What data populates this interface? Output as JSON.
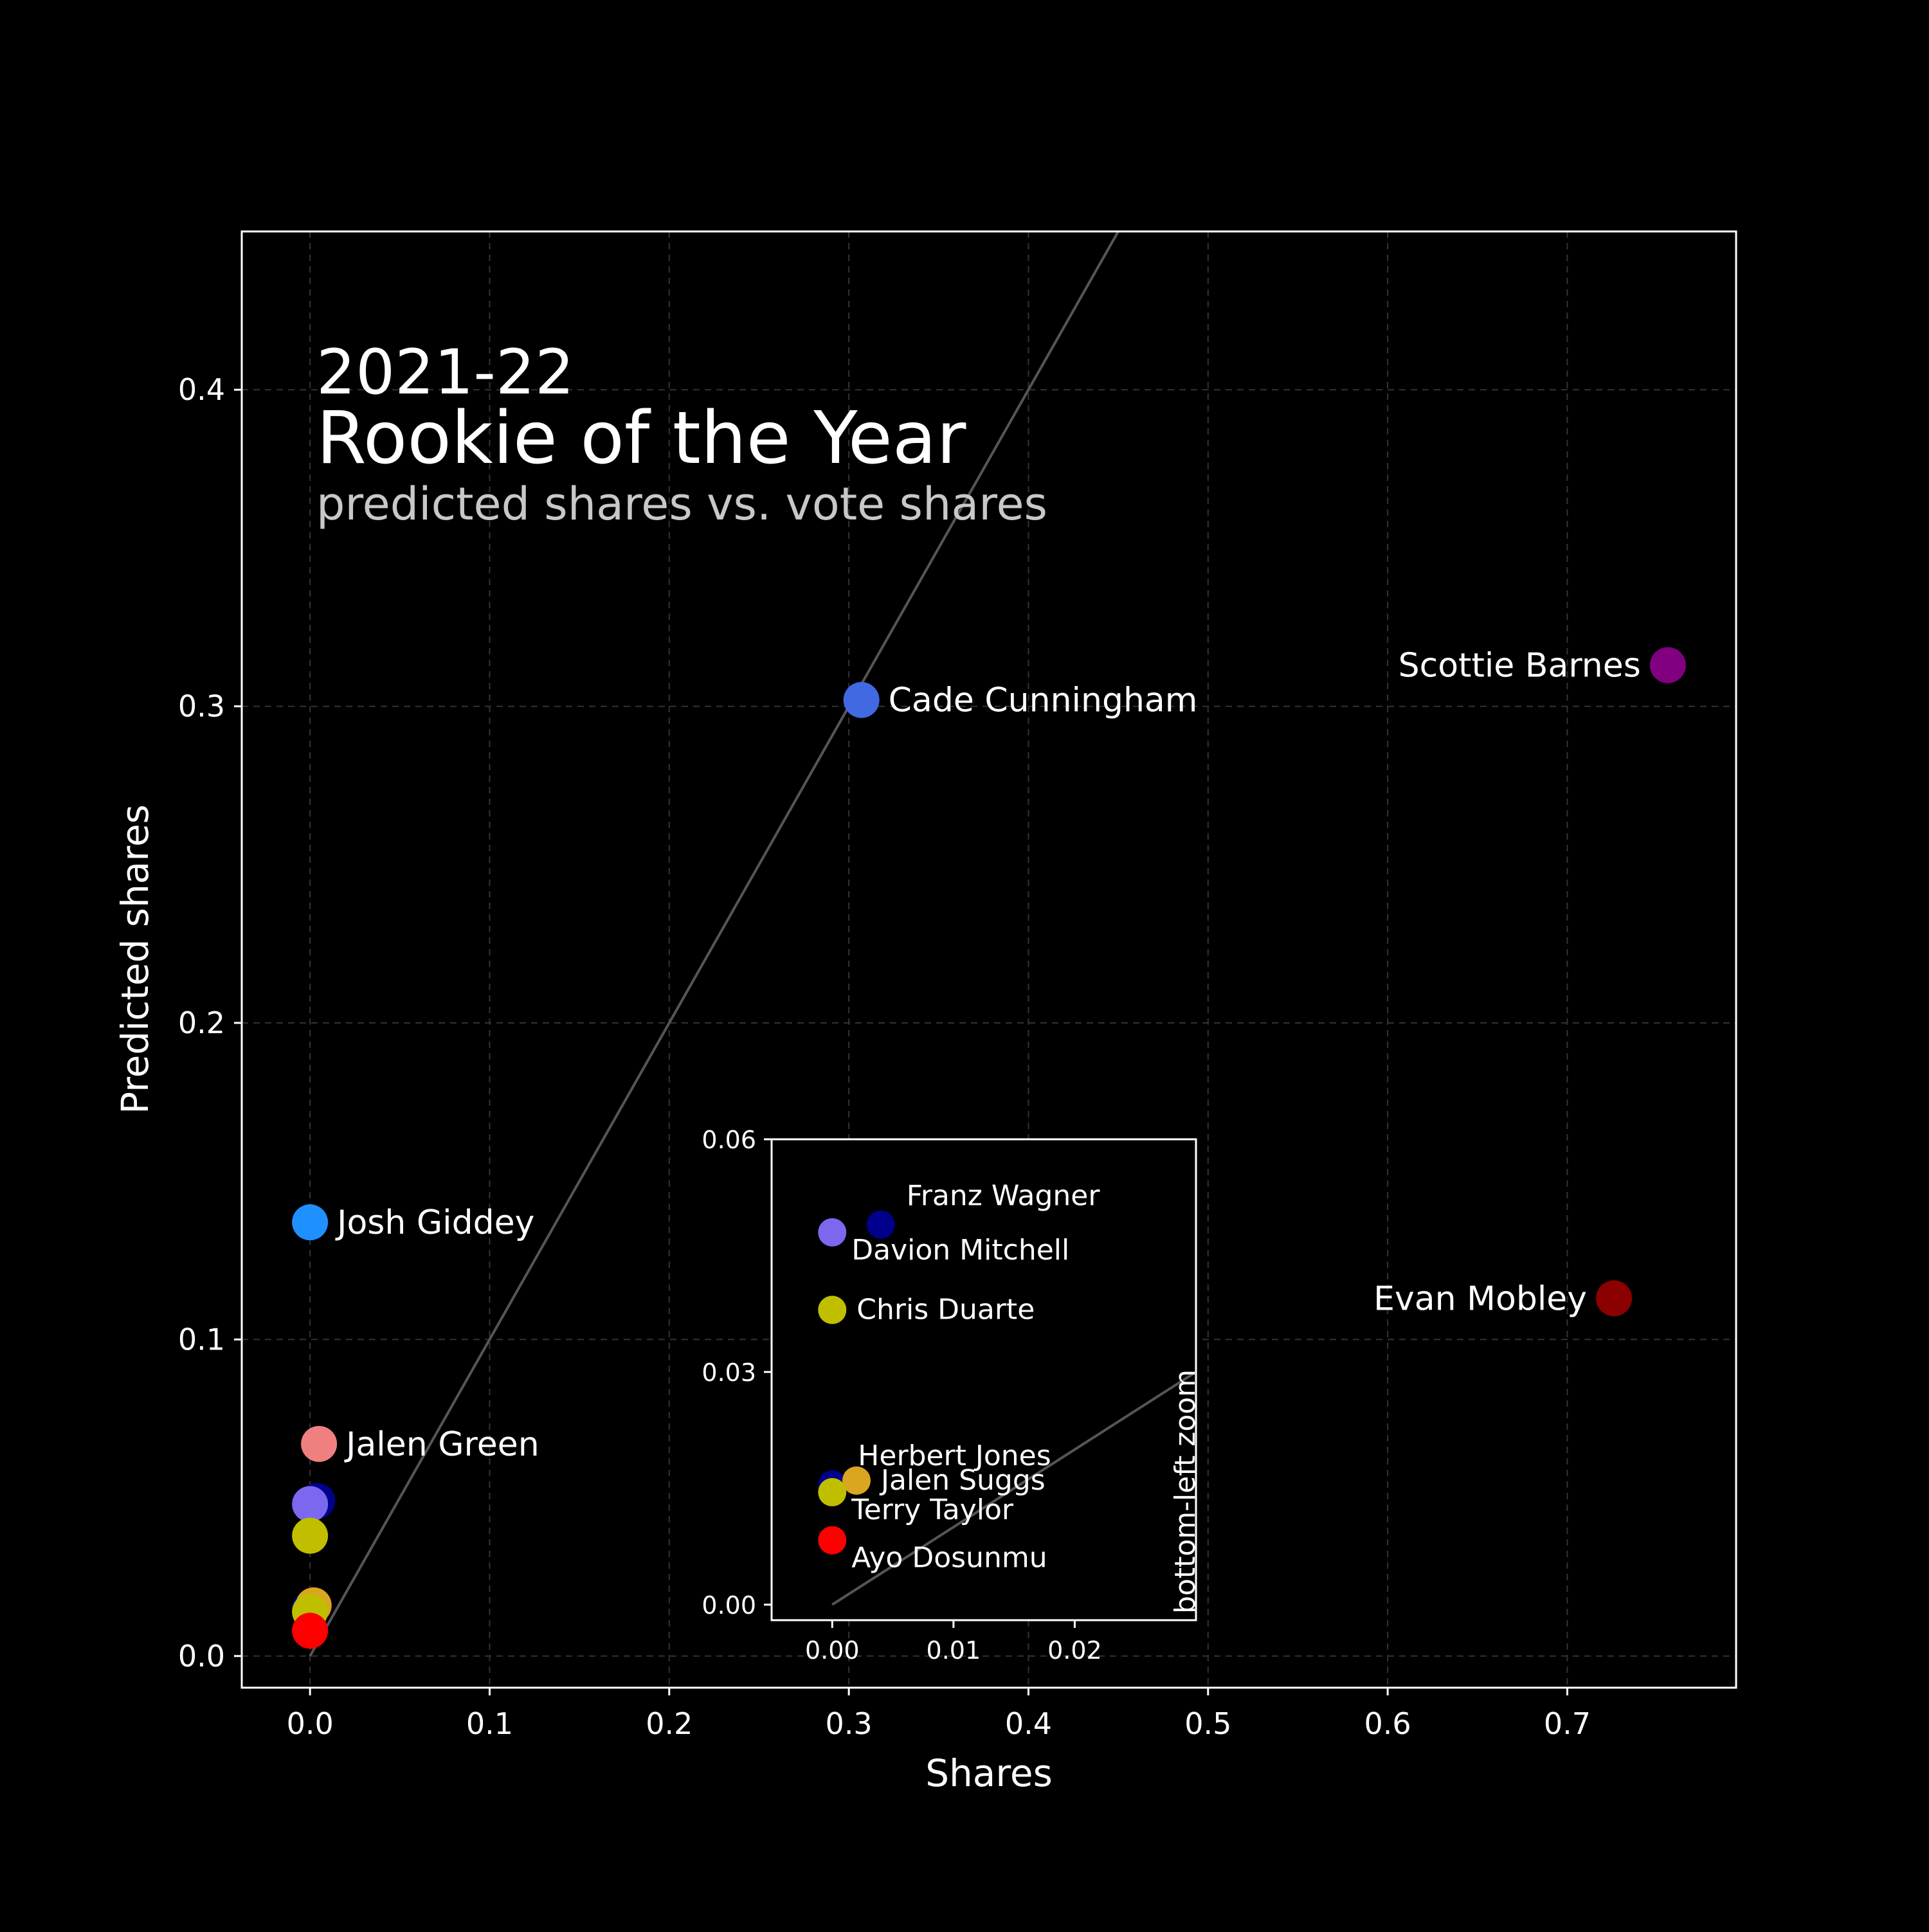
{
  "chart_data": [
    {
      "type": "scatter",
      "panel": "main",
      "title": "2021-22",
      "subtitle": "Rookie of the Year",
      "caption": "predicted shares vs. vote shares",
      "xlabel": "Shares",
      "ylabel": "Predicted shares",
      "xlim": [
        -0.038,
        0.794
      ],
      "ylim": [
        -0.01,
        0.45
      ],
      "xticks": [
        0.0,
        0.1,
        0.2,
        0.3,
        0.4,
        0.5,
        0.6,
        0.7
      ],
      "xtick_labels": [
        "0.0",
        "0.1",
        "0.2",
        "0.3",
        "0.4",
        "0.5",
        "0.6",
        "0.7"
      ],
      "yticks": [
        0.0,
        0.1,
        0.2,
        0.3,
        0.4
      ],
      "ytick_labels": [
        "0.0",
        "0.1",
        "0.2",
        "0.3",
        "0.4"
      ],
      "grid": true,
      "reference_line": "y = x",
      "points": [
        {
          "name": "Scottie Barnes",
          "x": 0.756,
          "y": 0.313,
          "color": "#800080",
          "label": "Scottie Barnes",
          "label_side": "left"
        },
        {
          "name": "Evan Mobley",
          "x": 0.726,
          "y": 0.113,
          "color": "#8b0000",
          "label": "Evan Mobley",
          "label_side": "left"
        },
        {
          "name": "Cade Cunningham",
          "x": 0.307,
          "y": 0.302,
          "color": "#4169e1",
          "label": "Cade Cunningham",
          "label_side": "right"
        },
        {
          "name": "Josh Giddey",
          "x": 0.0,
          "y": 0.137,
          "color": "#1e90ff",
          "label": "Josh Giddey",
          "label_side": "right"
        },
        {
          "name": "Jalen Green",
          "x": 0.005,
          "y": 0.067,
          "color": "#f08080",
          "label": "Jalen Green",
          "label_side": "right"
        },
        {
          "name": "Franz Wagner",
          "x": 0.004,
          "y": 0.049,
          "color": "#00008b",
          "label": "",
          "label_side": "none"
        },
        {
          "name": "Davion Mitchell",
          "x": 0.0,
          "y": 0.048,
          "color": "#7b68ee",
          "label": "",
          "label_side": "none"
        },
        {
          "name": "Chris Duarte",
          "x": 0.0,
          "y": 0.038,
          "color": "#bfbf00",
          "label": "",
          "label_side": "none"
        },
        {
          "name": "Herbert Jones",
          "x": 0.0,
          "y": 0.015,
          "color": "#00008b",
          "label": "",
          "label_side": "none"
        },
        {
          "name": "Jalen Suggs",
          "x": 0.002,
          "y": 0.016,
          "color": "#daa520",
          "label": "",
          "label_side": "none"
        },
        {
          "name": "Terry Taylor",
          "x": 0.0,
          "y": 0.014,
          "color": "#bfbf00",
          "label": "",
          "label_side": "none"
        },
        {
          "name": "Ayo Dosunmu",
          "x": 0.0,
          "y": 0.008,
          "color": "#ff0000",
          "label": "",
          "label_side": "none"
        }
      ]
    },
    {
      "type": "scatter",
      "panel": "inset",
      "title": "bottom-left zoom",
      "xlim": [
        -0.005,
        0.03
      ],
      "ylim": [
        -0.002,
        0.06
      ],
      "xticks": [
        0.0,
        0.01,
        0.02
      ],
      "xtick_labels": [
        "0.00",
        "0.01",
        "0.02"
      ],
      "yticks": [
        0.0,
        0.03,
        0.06
      ],
      "ytick_labels": [
        "0.00",
        "0.03",
        "0.06"
      ],
      "grid": false,
      "reference_line": "y = x",
      "points": [
        {
          "name": "Franz Wagner",
          "x": 0.004,
          "y": 0.049,
          "color": "#00008b",
          "label": "Franz Wagner",
          "label_side": "upper-right"
        },
        {
          "name": "Davion Mitchell",
          "x": 0.0,
          "y": 0.048,
          "color": "#7b68ee",
          "label": "Davion Mitchell",
          "label_side": "lower-right"
        },
        {
          "name": "Chris Duarte",
          "x": 0.0,
          "y": 0.038,
          "color": "#bfbf00",
          "label": "Chris Duarte",
          "label_side": "right"
        },
        {
          "name": "Herbert Jones",
          "x": 0.0,
          "y": 0.0155,
          "color": "#00008b",
          "label": "Herbert Jones",
          "label_side": "upper-right"
        },
        {
          "name": "Jalen Suggs",
          "x": 0.002,
          "y": 0.016,
          "color": "#daa520",
          "label": "Jalen Suggs",
          "label_side": "right"
        },
        {
          "name": "Terry Taylor",
          "x": 0.0,
          "y": 0.0145,
          "color": "#bfbf00",
          "label": "Terry Taylor",
          "label_side": "lower-right"
        },
        {
          "name": "Ayo Dosunmu",
          "x": 0.0,
          "y": 0.0083,
          "color": "#ff0000",
          "label": "Ayo Dosunmu",
          "label_side": "lower-right"
        }
      ]
    }
  ]
}
